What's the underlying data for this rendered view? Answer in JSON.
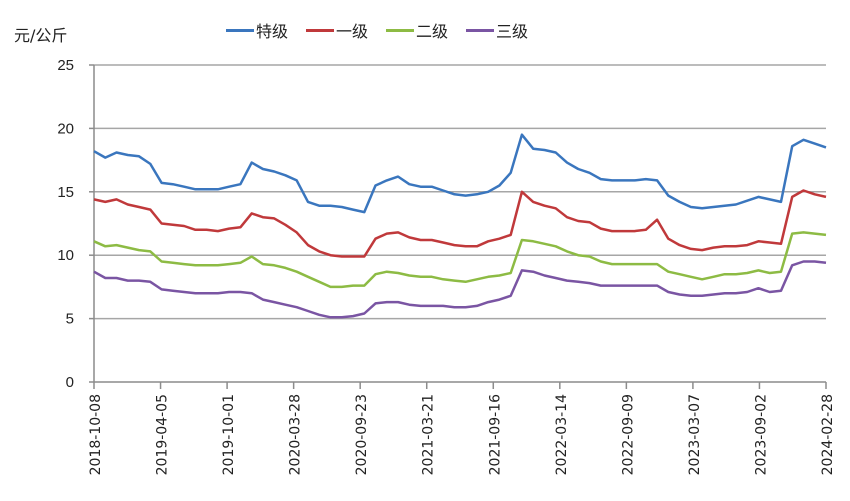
{
  "chart_data": {
    "type": "line",
    "title": "",
    "ylabel": "元/公斤",
    "xlabel": "",
    "ylim": [
      0,
      25
    ],
    "yticks": [
      0,
      5,
      10,
      15,
      20,
      25
    ],
    "grid": true,
    "legend_position": "top",
    "x_tick_labels": [
      "2018-10-08",
      "2019-04-05",
      "2019-10-01",
      "2020-03-28",
      "2020-09-23",
      "2021-03-21",
      "2021-09-16",
      "2022-03-14",
      "2022-09-09",
      "2023-03-07",
      "2023-09-02",
      "2024-02-28"
    ],
    "x_range": [
      "2018-10-08",
      "2024-02-28"
    ],
    "series": [
      {
        "name": "特级",
        "color": "#3A76BE",
        "values": [
          18.2,
          17.7,
          18.1,
          17.9,
          17.8,
          17.2,
          15.7,
          15.6,
          15.4,
          15.2,
          15.2,
          15.2,
          15.4,
          15.6,
          17.3,
          16.8,
          16.6,
          16.3,
          15.9,
          14.2,
          13.9,
          13.9,
          13.8,
          13.6,
          13.4,
          15.5,
          15.9,
          16.2,
          15.6,
          15.4,
          15.4,
          15.1,
          14.8,
          14.7,
          14.8,
          15.0,
          15.5,
          16.5,
          19.5,
          18.4,
          18.3,
          18.1,
          17.3,
          16.8,
          16.5,
          16.0,
          15.9,
          15.9,
          15.9,
          16.0,
          15.9,
          14.7,
          14.2,
          13.8,
          13.7,
          13.8,
          13.9,
          14.0,
          14.3,
          14.6,
          14.4,
          14.2,
          18.6,
          19.1,
          18.8,
          18.5
        ]
      },
      {
        "name": "一级",
        "color": "#C0393B",
        "values": [
          14.4,
          14.2,
          14.4,
          14.0,
          13.8,
          13.6,
          12.5,
          12.4,
          12.3,
          12.0,
          12.0,
          11.9,
          12.1,
          12.2,
          13.3,
          13.0,
          12.9,
          12.4,
          11.8,
          10.8,
          10.3,
          10.0,
          9.9,
          9.9,
          9.9,
          11.3,
          11.7,
          11.8,
          11.4,
          11.2,
          11.2,
          11.0,
          10.8,
          10.7,
          10.7,
          11.1,
          11.3,
          11.6,
          15.0,
          14.2,
          13.9,
          13.7,
          13.0,
          12.7,
          12.6,
          12.1,
          11.9,
          11.9,
          11.9,
          12.0,
          12.8,
          11.3,
          10.8,
          10.5,
          10.4,
          10.6,
          10.7,
          10.7,
          10.8,
          11.1,
          11.0,
          10.9,
          14.6,
          15.1,
          14.8,
          14.6
        ]
      },
      {
        "name": "二级",
        "color": "#8DBB44",
        "values": [
          11.1,
          10.7,
          10.8,
          10.6,
          10.4,
          10.3,
          9.5,
          9.4,
          9.3,
          9.2,
          9.2,
          9.2,
          9.3,
          9.4,
          9.9,
          9.3,
          9.2,
          9.0,
          8.7,
          8.3,
          7.9,
          7.5,
          7.5,
          7.6,
          7.6,
          8.5,
          8.7,
          8.6,
          8.4,
          8.3,
          8.3,
          8.1,
          8.0,
          7.9,
          8.1,
          8.3,
          8.4,
          8.6,
          11.2,
          11.1,
          10.9,
          10.7,
          10.3,
          10.0,
          9.9,
          9.5,
          9.3,
          9.3,
          9.3,
          9.3,
          9.3,
          8.7,
          8.5,
          8.3,
          8.1,
          8.3,
          8.5,
          8.5,
          8.6,
          8.8,
          8.6,
          8.7,
          11.7,
          11.8,
          11.7,
          11.6
        ]
      },
      {
        "name": "三级",
        "color": "#7A55A3",
        "values": [
          8.7,
          8.2,
          8.2,
          8.0,
          8.0,
          7.9,
          7.3,
          7.2,
          7.1,
          7.0,
          7.0,
          7.0,
          7.1,
          7.1,
          7.0,
          6.5,
          6.3,
          6.1,
          5.9,
          5.6,
          5.3,
          5.1,
          5.1,
          5.2,
          5.4,
          6.2,
          6.3,
          6.3,
          6.1,
          6.0,
          6.0,
          6.0,
          5.9,
          5.9,
          6.0,
          6.3,
          6.5,
          6.8,
          8.8,
          8.7,
          8.4,
          8.2,
          8.0,
          7.9,
          7.8,
          7.6,
          7.6,
          7.6,
          7.6,
          7.6,
          7.6,
          7.1,
          6.9,
          6.8,
          6.8,
          6.9,
          7.0,
          7.0,
          7.1,
          7.4,
          7.1,
          7.2,
          9.2,
          9.5,
          9.5,
          9.4
        ]
      }
    ]
  },
  "legend": {
    "items": [
      {
        "label": "特级",
        "color": "#3A76BE"
      },
      {
        "label": "一级",
        "color": "#C0393B"
      },
      {
        "label": "二级",
        "color": "#8DBB44"
      },
      {
        "label": "三级",
        "color": "#7A55A3"
      }
    ]
  },
  "axis": {
    "unit_label": "元/公斤"
  }
}
